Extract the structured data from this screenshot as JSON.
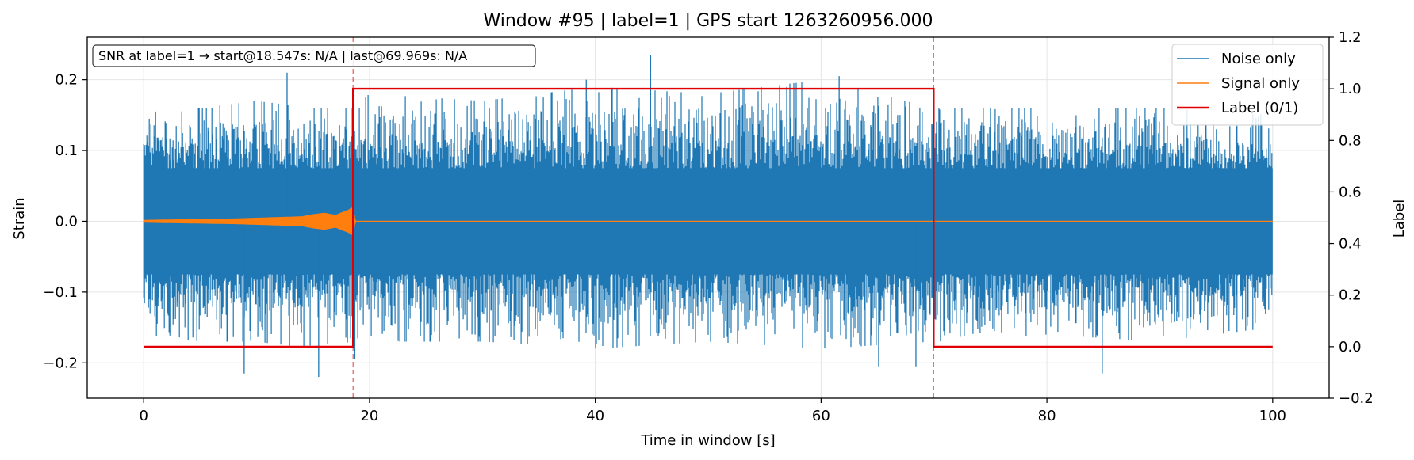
{
  "chart_data": {
    "type": "line",
    "title": "Window #95  |  label=1  |  GPS start 1263260956.000",
    "xlabel": "Time in window [s]",
    "ylabel": "Strain",
    "ylabel_right": "Label",
    "xlim": [
      -5,
      105
    ],
    "ylim": [
      -0.25,
      0.26
    ],
    "ylim_right": [
      -0.2,
      1.2
    ],
    "x_ticks": [
      0,
      20,
      40,
      60,
      80,
      100
    ],
    "x_tick_labels": [
      "0",
      "20",
      "40",
      "60",
      "80",
      "100"
    ],
    "y_ticks": [
      -0.2,
      -0.1,
      0.0,
      0.1,
      0.2
    ],
    "y_tick_labels": [
      "−0.2",
      "−0.1",
      "0.0",
      "0.1",
      "0.2"
    ],
    "y_right_ticks": [
      -0.2,
      0.0,
      0.2,
      0.4,
      0.6,
      0.8,
      1.0,
      1.2
    ],
    "y_right_tick_labels": [
      "−0.2",
      "0.0",
      "0.2",
      "0.4",
      "0.6",
      "0.8",
      "1.0",
      "1.2"
    ],
    "grid": true,
    "legend_position": "top-right",
    "annotation": "SNR at label=1 → start@18.547s: N/A | last@69.969s: N/A",
    "vlines": [
      18.547,
      69.969
    ],
    "series": [
      {
        "name": "Noise only",
        "color": "#1f77b4",
        "axis": "left",
        "x_range": [
          0,
          100
        ],
        "envelope": {
          "x": [
            0,
            5,
            10,
            15,
            18.5,
            20,
            30,
            40,
            50,
            60,
            70,
            80,
            90,
            100
          ],
          "upper": [
            0.16,
            0.16,
            0.17,
            0.16,
            0.16,
            0.18,
            0.17,
            0.19,
            0.18,
            0.2,
            0.16,
            0.16,
            0.16,
            0.15
          ],
          "lower": [
            -0.16,
            -0.17,
            -0.17,
            -0.18,
            -0.17,
            -0.17,
            -0.17,
            -0.18,
            -0.17,
            -0.18,
            -0.17,
            -0.16,
            -0.17,
            -0.15
          ]
        },
        "spikes": [
          {
            "x": 12.7,
            "y": 0.21
          },
          {
            "x": 39.2,
            "y": 0.2
          },
          {
            "x": 44.9,
            "y": 0.235
          },
          {
            "x": 61.6,
            "y": 0.205
          },
          {
            "x": 15.5,
            "y": -0.22
          },
          {
            "x": 8.9,
            "y": -0.215
          },
          {
            "x": 65.1,
            "y": -0.205
          },
          {
            "x": 68.4,
            "y": -0.205
          },
          {
            "x": 84.9,
            "y": -0.215
          },
          {
            "x": 18.7,
            "y": -0.195
          }
        ]
      },
      {
        "name": "Signal only",
        "color": "#ff7f0e",
        "axis": "left",
        "x": [
          0,
          4,
          8,
          10,
          12,
          14,
          15,
          16,
          17,
          17.6,
          18.1,
          18.5,
          18.8,
          19.2,
          20,
          100
        ],
        "amplitude": [
          0.002,
          0.003,
          0.004,
          0.005,
          0.006,
          0.007,
          0.01,
          0.012,
          0.009,
          0.013,
          0.016,
          0.02,
          0.0,
          0.0,
          0.0,
          0.0
        ]
      },
      {
        "name": "Label (0/1)",
        "color": "#e00000",
        "axis": "right",
        "x": [
          0,
          18.547,
          18.547,
          69.969,
          69.969,
          100
        ],
        "y": [
          0,
          0,
          1,
          1,
          0,
          0
        ]
      }
    ]
  }
}
